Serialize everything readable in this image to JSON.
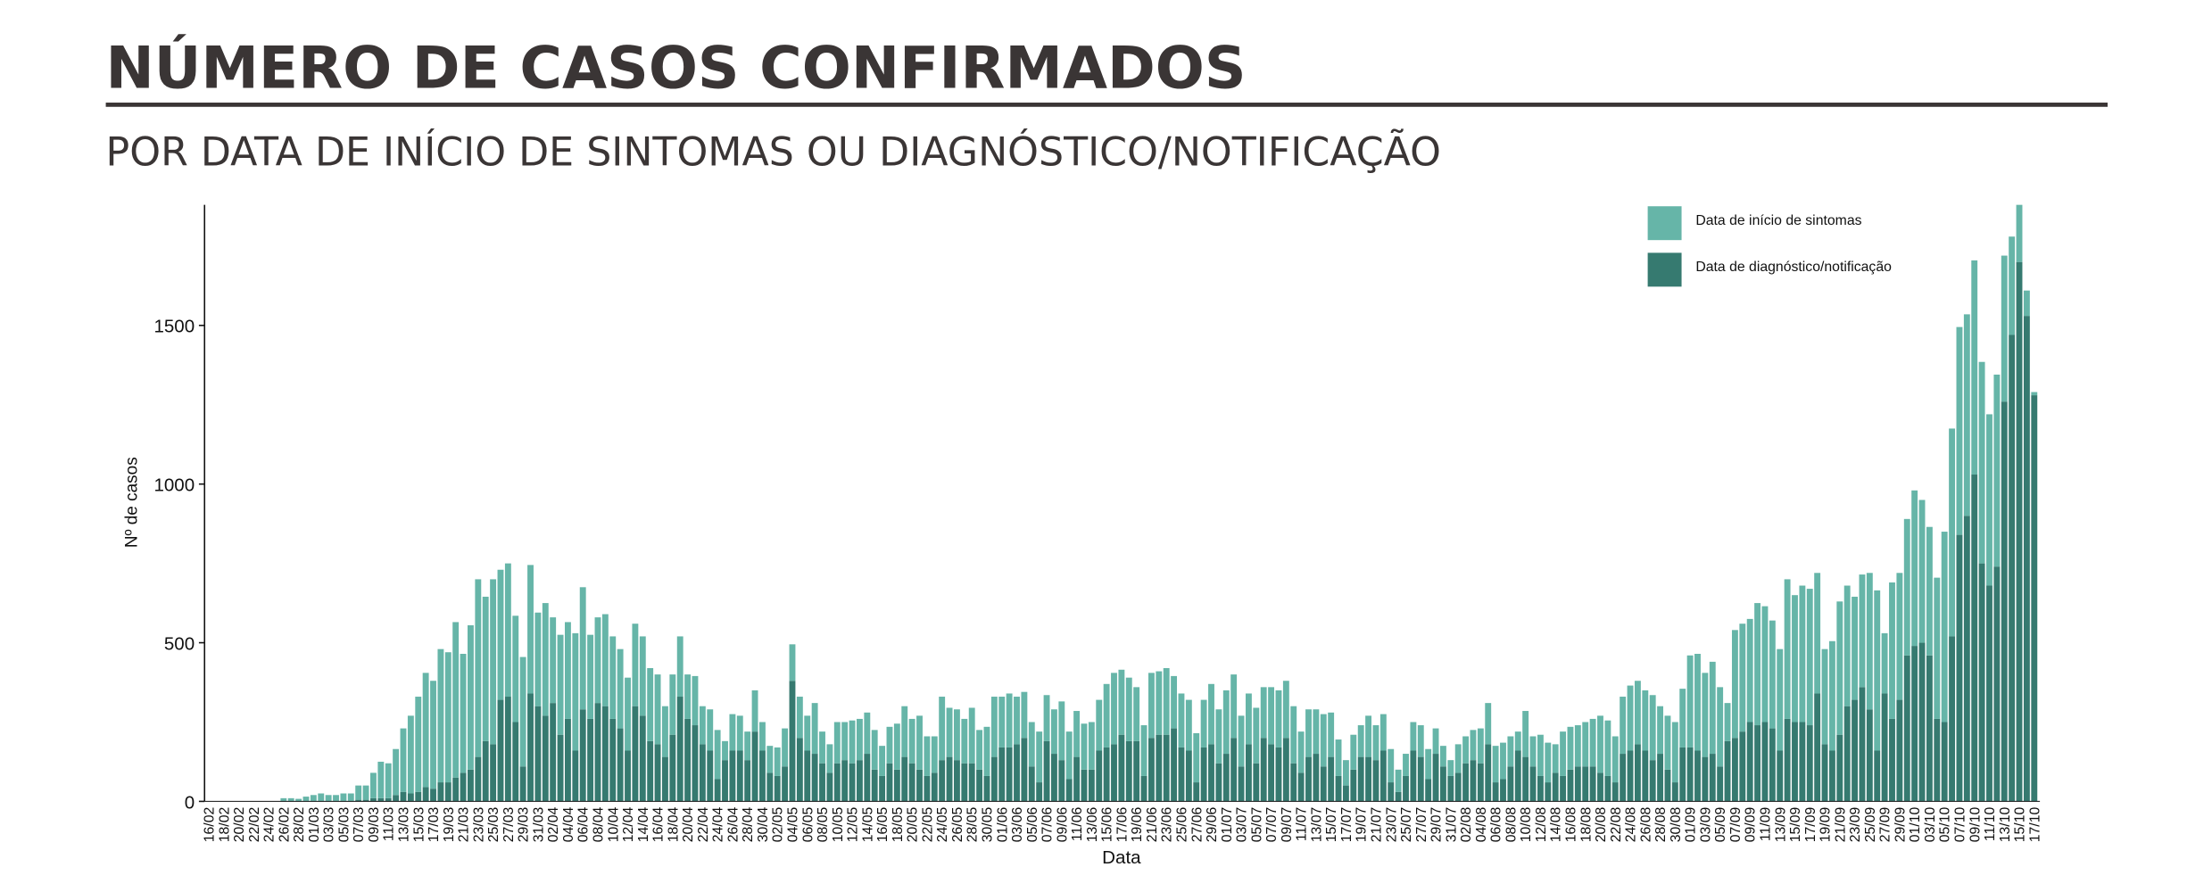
{
  "chart_data": {
    "type": "bar",
    "stacked": true,
    "title": "NÚMERO DE CASOS CONFIRMADOS",
    "subtitle": "POR DATA DE INÍCIO DE SINTOMAS OU DIAGNÓSTICO/NOTIFICAÇÃO",
    "x_label": "Data",
    "y_label": "Nº de casos",
    "legend": "top-right",
    "categories": [
      "16/02",
      null,
      "18/02",
      null,
      "20/02",
      null,
      "22/02",
      null,
      "24/02",
      null,
      "26/02",
      null,
      "28/02",
      null,
      "01/03",
      null,
      "03/03",
      null,
      "05/03",
      null,
      "07/03",
      null,
      "09/03",
      null,
      "11/03",
      null,
      "13/03",
      null,
      "15/03",
      null,
      "17/03",
      null,
      "19/03",
      null,
      "21/03",
      null,
      "23/03",
      null,
      "25/03",
      null,
      "27/03",
      null,
      "29/03",
      null,
      "31/03",
      null,
      "02/04",
      null,
      "04/04",
      null,
      "06/04",
      null,
      "08/04",
      null,
      "10/04",
      null,
      "12/04",
      null,
      "14/04",
      null,
      "16/04",
      null,
      "18/04",
      null,
      "20/04",
      null,
      "22/04",
      null,
      "24/04",
      null,
      "26/04",
      null,
      "28/04",
      null,
      "30/04",
      null,
      "02/05",
      null,
      "04/05",
      null,
      "06/05",
      null,
      "08/05",
      null,
      "10/05",
      null,
      "12/05",
      null,
      "14/05",
      null,
      "16/05",
      null,
      "18/05",
      null,
      "20/05",
      null,
      "22/05",
      null,
      "24/05",
      null,
      "26/05",
      null,
      "28/05",
      null,
      "30/05",
      null,
      "01/06",
      null,
      "03/06",
      null,
      "05/06",
      null,
      "07/06",
      null,
      "09/06",
      null,
      "11/06",
      null,
      "13/06",
      null,
      "15/06",
      null,
      "17/06",
      null,
      "19/06",
      null,
      "21/06",
      null,
      "23/06",
      null,
      "25/06",
      null,
      "27/06",
      null,
      "29/06",
      null,
      "01/07",
      null,
      "03/07",
      null,
      "05/07",
      null,
      "07/07",
      null,
      "09/07",
      null,
      "11/07",
      null,
      "13/07",
      null,
      "15/07",
      null,
      "17/07",
      null,
      "19/07",
      null,
      "21/07",
      null,
      "23/07",
      null,
      "25/07",
      null,
      "27/07",
      null,
      "29/07",
      null,
      "31/07",
      null,
      "02/08",
      null,
      "04/08",
      null,
      "06/08",
      null,
      "08/08",
      null,
      "10/08",
      null,
      "12/08",
      null,
      "14/08",
      null,
      "16/08",
      null,
      "18/08",
      null,
      "20/08",
      null,
      "22/08",
      null,
      "24/08",
      null,
      "26/08",
      null,
      "28/08",
      null,
      "30/08",
      null,
      "01/09",
      null,
      "03/09",
      null,
      "05/09",
      null,
      "07/09",
      null,
      "09/09",
      null,
      "11/09",
      null,
      "13/09",
      null,
      "15/09",
      null,
      "17/09",
      null,
      "19/09",
      null,
      "21/09",
      null,
      "23/09",
      null,
      "25/09",
      null,
      "27/09",
      null,
      "29/09",
      null,
      "01/10",
      null,
      "03/10",
      null,
      "05/10",
      null,
      "07/10",
      null,
      "09/10",
      null,
      "11/10",
      null,
      "13/10",
      null,
      "15/10",
      null,
      "17/10"
    ],
    "series": [
      {
        "name": "Data de início de sintomas",
        "color": "#66b5a8",
        "values": [
          0,
          0,
          0,
          0,
          0,
          0,
          0,
          0,
          0,
          0,
          10,
          10,
          8,
          15,
          20,
          25,
          20,
          20,
          25,
          25,
          45,
          45,
          80,
          115,
          110,
          145,
          200,
          245,
          300,
          360,
          340,
          420,
          410,
          490,
          375,
          455,
          560,
          455,
          520,
          410,
          420,
          335,
          345,
          405,
          295,
          355,
          270,
          315,
          305,
          370,
          385,
          265,
          270,
          290,
          260,
          250,
          230,
          260,
          250,
          230,
          220,
          160,
          190,
          190,
          140,
          155,
          120,
          130,
          155,
          60,
          115,
          110,
          90,
          130,
          90,
          85,
          90,
          120,
          115,
          130,
          110,
          160,
          100,
          90,
          130,
          120,
          135,
          130,
          130,
          125,
          95,
          115,
          145,
          160,
          140,
          170,
          125,
          115,
          200,
          155,
          160,
          140,
          175,
          125,
          155,
          190,
          160,
          170,
          150,
          145,
          140,
          160,
          145,
          140,
          185,
          150,
          145,
          145,
          150,
          160,
          200,
          225,
          205,
          200,
          170,
          160,
          205,
          200,
          210,
          165,
          170,
          160,
          155,
          150,
          190,
          170,
          200,
          200,
          160,
          160,
          175,
          160,
          180,
          180,
          180,
          180,
          130,
          150,
          140,
          165,
          140,
          115,
          80,
          110,
          100,
          130,
          110,
          115,
          105,
          70,
          70,
          90,
          100,
          95,
          80,
          65,
          50,
          90,
          85,
          95,
          110,
          130,
          115,
          115,
          95,
          60,
          145,
          95,
          130,
          125,
          90,
          140,
          135,
          130,
          140,
          150,
          180,
          175,
          145,
          180,
          205,
          200,
          190,
          205,
          150,
          170,
          190,
          185,
          290,
          305,
          265,
          290,
          250,
          120,
          340,
          340,
          325,
          385,
          365,
          340,
          320,
          440,
          400,
          430,
          430,
          380,
          300,
          345,
          420,
          380,
          325,
          355,
          430,
          505,
          190,
          430,
          400,
          430,
          490,
          450,
          405,
          445,
          600,
          655,
          655,
          635,
          675,
          635,
          540,
          605,
          460,
          310,
          180,
          80,
          10
        ]
      },
      {
        "name": "Data de diagnóstico/notificação",
        "color": "#367a70",
        "values": [
          0,
          0,
          0,
          0,
          0,
          0,
          0,
          0,
          0,
          0,
          0,
          0,
          0,
          0,
          0,
          0,
          0,
          0,
          0,
          0,
          5,
          5,
          10,
          10,
          10,
          20,
          30,
          25,
          30,
          45,
          40,
          60,
          60,
          75,
          90,
          100,
          140,
          190,
          180,
          320,
          330,
          250,
          110,
          340,
          300,
          270,
          310,
          210,
          260,
          160,
          290,
          260,
          310,
          300,
          260,
          230,
          160,
          300,
          270,
          190,
          180,
          140,
          210,
          330,
          260,
          240,
          180,
          160,
          70,
          130,
          160,
          160,
          130,
          220,
          160,
          90,
          80,
          110,
          380,
          200,
          160,
          150,
          120,
          90,
          120,
          130,
          120,
          130,
          150,
          100,
          80,
          120,
          100,
          140,
          120,
          100,
          80,
          90,
          130,
          140,
          130,
          120,
          120,
          100,
          80,
          140,
          170,
          170,
          180,
          200,
          110,
          60,
          190,
          150,
          130,
          70,
          140,
          100,
          100,
          160,
          170,
          180,
          210,
          190,
          190,
          80,
          200,
          210,
          210,
          230,
          170,
          160,
          60,
          170,
          180,
          120,
          150,
          200,
          110,
          180,
          120,
          200,
          180,
          170,
          200,
          120,
          90,
          140,
          150,
          110,
          140,
          80,
          50,
          100,
          140,
          140,
          130,
          160,
          60,
          30,
          80,
          160,
          140,
          70,
          150,
          110,
          80,
          90,
          120,
          130,
          120,
          180,
          60,
          70,
          110,
          160,
          140,
          110,
          80,
          60,
          90,
          80,
          100,
          110,
          110,
          110,
          90,
          80,
          60,
          150,
          160,
          180,
          160,
          130,
          150,
          100,
          60,
          170,
          170,
          160,
          140,
          150,
          110,
          190,
          200,
          220,
          250,
          240,
          250,
          230,
          160,
          260,
          250,
          250,
          240,
          340,
          180,
          160,
          210,
          300,
          320,
          360,
          290,
          160,
          340,
          260,
          320,
          460,
          490,
          500,
          460,
          260,
          250,
          520,
          840,
          900,
          1030,
          750,
          680,
          740,
          1260,
          1470,
          1700,
          1530,
          1280
        ]
      }
    ],
    "ylim": [
      0,
      1880
    ],
    "yticks": [
      0,
      500,
      1000,
      1500
    ]
  }
}
